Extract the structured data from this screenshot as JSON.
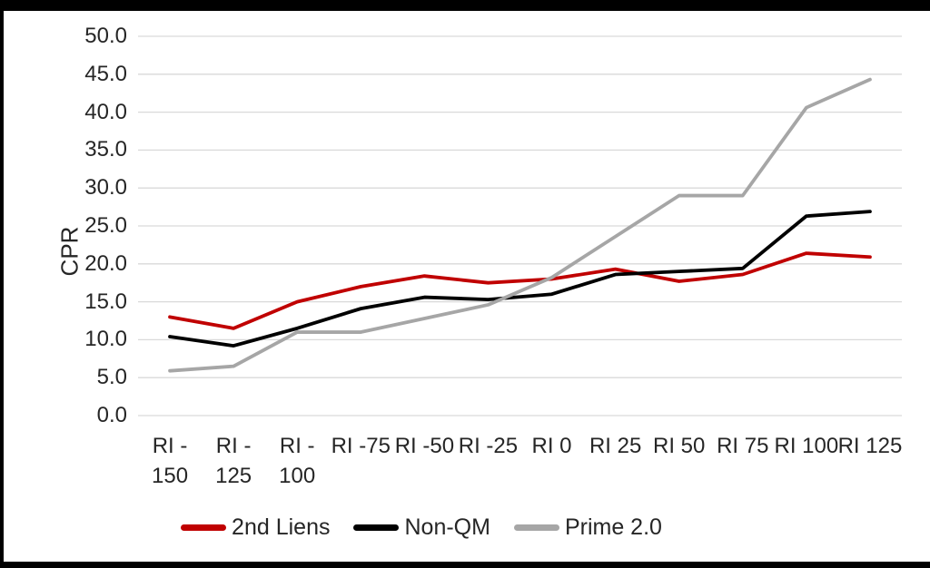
{
  "chart_data": {
    "type": "line",
    "title": "",
    "xlabel": "",
    "ylabel": "CPR",
    "ylim": [
      0,
      50
    ],
    "ytick_step": 5,
    "ytick_labels": [
      "0.0",
      "5.0",
      "10.0",
      "15.0",
      "20.0",
      "25.0",
      "30.0",
      "35.0",
      "40.0",
      "45.0",
      "50.0"
    ],
    "categories": [
      "RI -150",
      "RI -125",
      "RI -100",
      "RI -75",
      "RI -50",
      "RI -25",
      "RI 0",
      "RI 25",
      "RI 50",
      "RI 75",
      "RI 100",
      "RI 125"
    ],
    "xtick_lines": [
      [
        "RI -",
        "150"
      ],
      [
        "RI -",
        "125"
      ],
      [
        "RI -",
        "100"
      ],
      [
        "RI -75"
      ],
      [
        "RI -50"
      ],
      [
        "RI -25"
      ],
      [
        "RI 0"
      ],
      [
        "RI 25"
      ],
      [
        "RI 50"
      ],
      [
        "RI 75"
      ],
      [
        "RI 100"
      ],
      [
        "RI 125"
      ]
    ],
    "grid": true,
    "legend_position": "bottom",
    "series": [
      {
        "name": "2nd Liens",
        "color": "#C00000",
        "values": [
          13.0,
          11.5,
          15.0,
          17.0,
          18.4,
          17.5,
          18.0,
          19.3,
          17.7,
          18.6,
          21.4,
          20.9
        ]
      },
      {
        "name": "Non-QM",
        "color": "#000000",
        "values": [
          10.4,
          9.2,
          11.5,
          14.1,
          15.6,
          15.3,
          16.0,
          18.6,
          19.0,
          19.4,
          26.3,
          26.9
        ]
      },
      {
        "name": "Prime 2.0",
        "color": "#A6A6A6",
        "values": [
          5.9,
          6.5,
          11.0,
          11.0,
          12.8,
          14.6,
          18.2,
          23.6,
          29.0,
          29.0,
          40.6,
          44.3
        ]
      }
    ],
    "colors": {
      "gridline": "#D9D9D9",
      "text": "#262626",
      "frame": "#000000",
      "background": "#FFFFFF"
    }
  }
}
